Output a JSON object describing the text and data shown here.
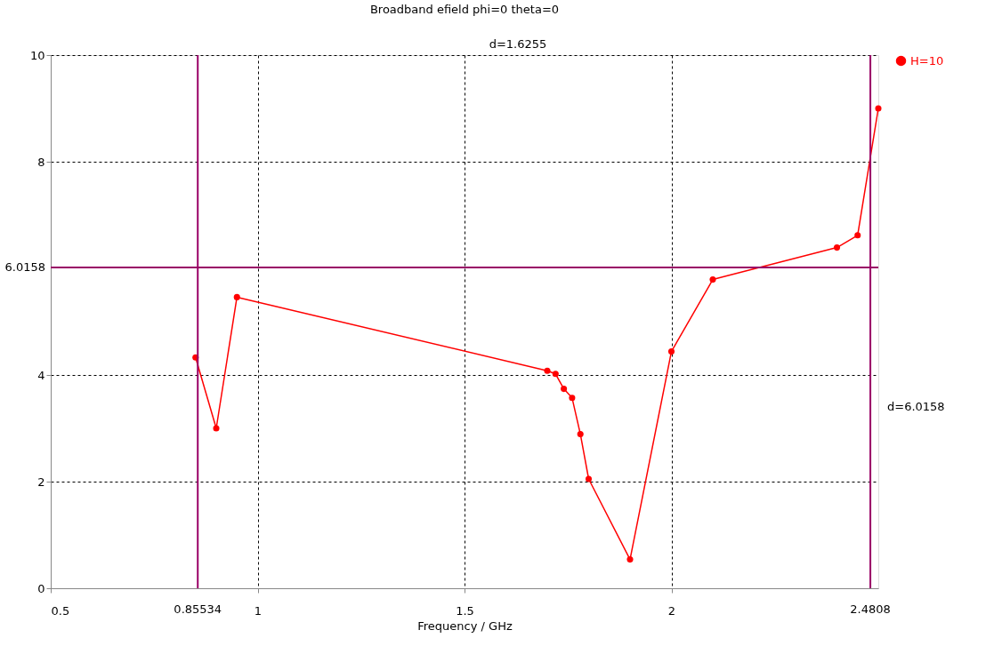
{
  "chart_data": {
    "type": "line",
    "title": "Broadband efield phi=0 theta=0",
    "xlabel": "Frequency / GHz",
    "x": [
      0.85,
      0.9,
      0.95,
      1.7,
      1.72,
      1.74,
      1.76,
      1.78,
      1.8,
      1.9,
      2.0,
      2.1,
      2.4,
      2.45,
      2.5
    ],
    "series": [
      {
        "name": "H=10",
        "color": "#ff0000",
        "values": [
          4.33,
          3.0,
          5.46,
          4.08,
          4.02,
          3.74,
          3.57,
          2.89,
          2.05,
          0.54,
          4.44,
          5.79,
          6.39,
          6.62,
          9.0
        ]
      }
    ],
    "xlim": [
      0.5,
      2.5
    ],
    "xticks": [
      0.5,
      1,
      1.5,
      2
    ],
    "ylim": [
      0,
      10
    ],
    "yticks": [
      0,
      2,
      4,
      8,
      10
    ],
    "ref_lines": [
      {
        "axis": "x",
        "value": 0.85534,
        "label": "0.85534",
        "color": "#990066"
      },
      {
        "axis": "x",
        "value": 2.4808,
        "label": "2.4808",
        "color": "#990066"
      },
      {
        "axis": "y",
        "value": 6.0158,
        "label": "6.0158",
        "color": "#990066"
      }
    ],
    "annotations": [
      "d=1.6255",
      "d=6.0158"
    ],
    "grid": true,
    "legend": "top right",
    "marker": "circle",
    "line_style": "solid"
  }
}
